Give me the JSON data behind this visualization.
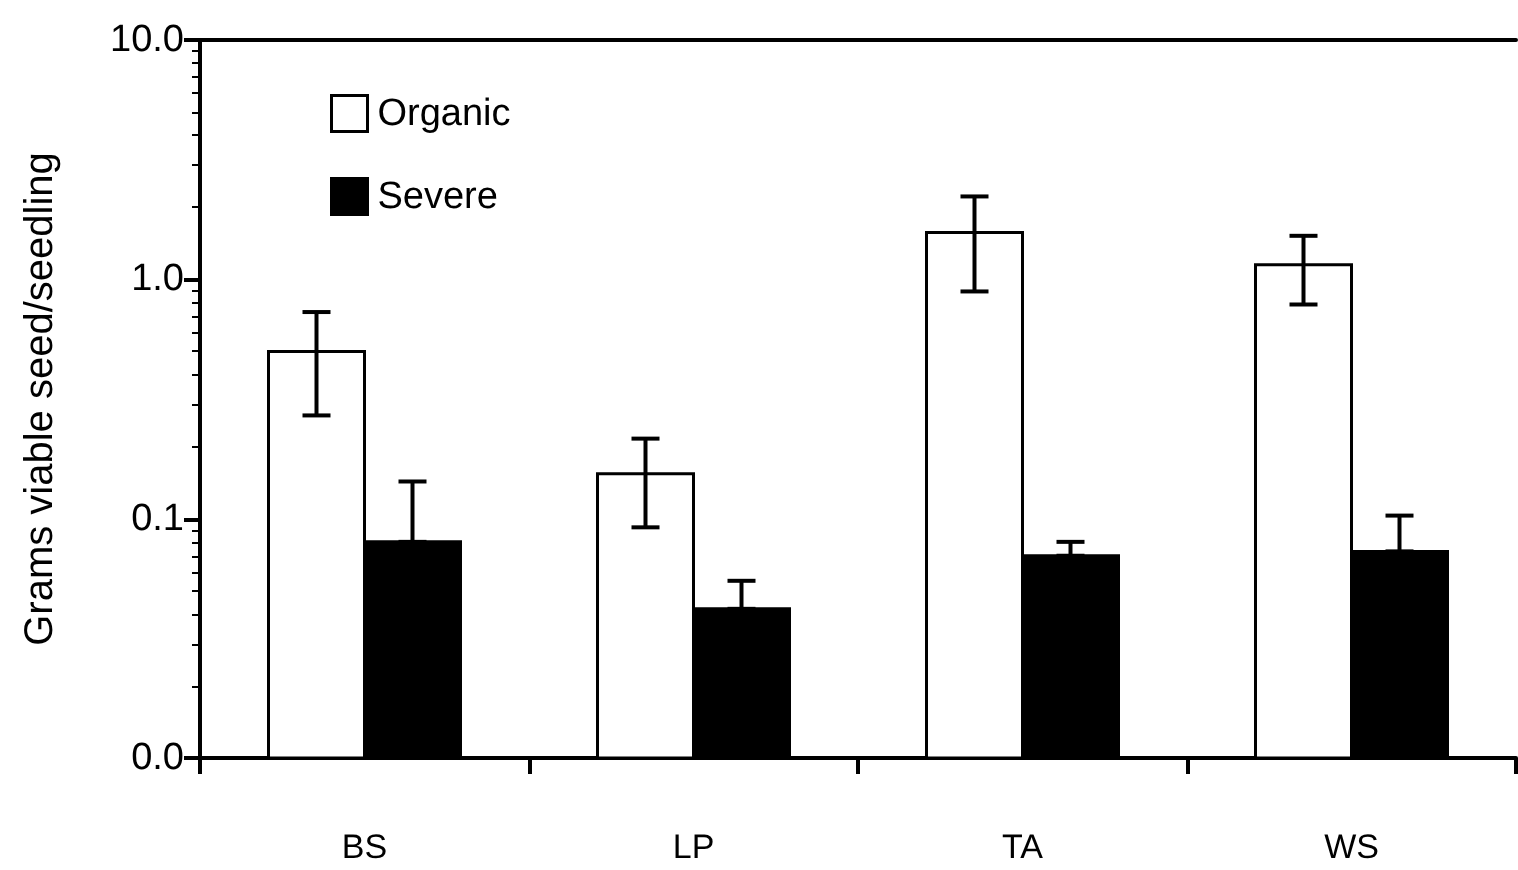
{
  "chart_data": {
    "type": "bar",
    "ylabel": "Grams viable seed/seedling",
    "categories": [
      "BS",
      "LP",
      "TA",
      "WS"
    ],
    "series": [
      {
        "name": "Organic",
        "color": "#ffffff",
        "values": [
          0.5,
          0.154,
          1.57,
          1.15
        ],
        "errors": [
          [
            0.27,
            0.73
          ],
          [
            0.092,
            0.216
          ],
          [
            0.89,
            2.22
          ],
          [
            0.785,
            1.52
          ]
        ]
      },
      {
        "name": "Severe",
        "color": "#000000",
        "values": [
          0.08,
          0.042,
          0.07,
          0.073
        ],
        "errors": [
          [
            0.08,
            0.143
          ],
          [
            0.042,
            0.055
          ],
          [
            0.07,
            0.08
          ],
          [
            0.073,
            0.103
          ]
        ]
      }
    ],
    "log": true,
    "ylim": [
      0.01,
      10
    ],
    "yticks": [
      {
        "value": 0.01,
        "label": "0.0"
      },
      {
        "value": 0.1,
        "label": "0.1"
      },
      {
        "value": 1,
        "label": "1.0"
      },
      {
        "value": 10,
        "label": "10.0"
      }
    ],
    "grid": false,
    "legend": "top left"
  }
}
